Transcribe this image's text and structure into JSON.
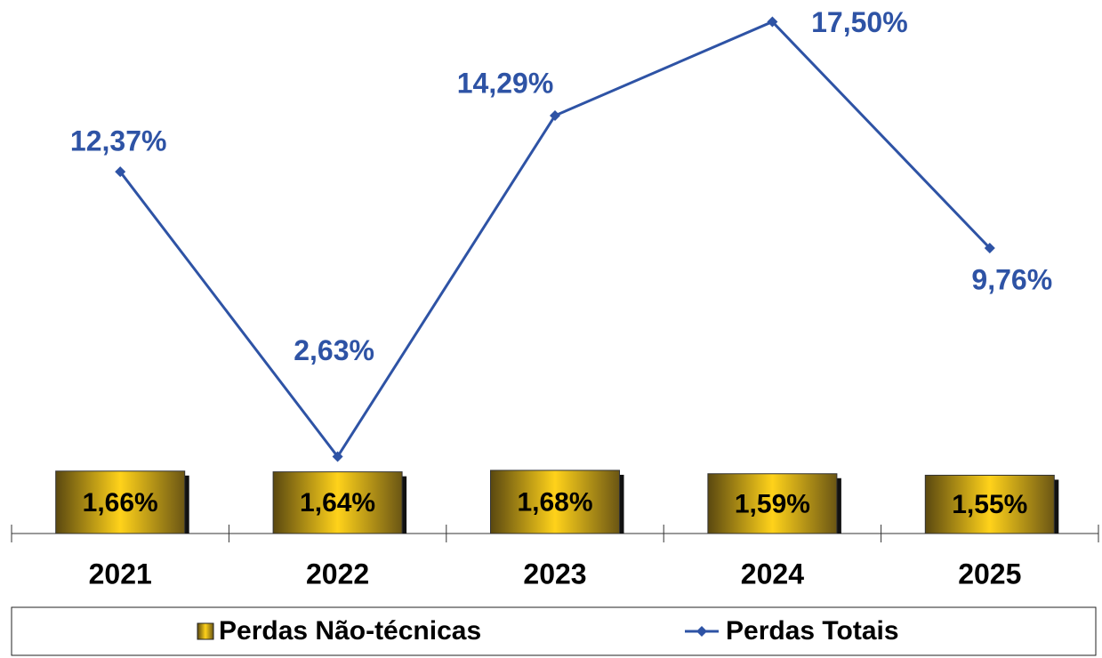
{
  "chart_data": {
    "type": "bar+line",
    "categories": [
      "2021",
      "2022",
      "2023",
      "2024",
      "2025"
    ],
    "series": [
      {
        "name": "Perdas Não-técnicas",
        "type": "bar",
        "axis": "y2",
        "color": "#f5c518",
        "values": [
          1.66,
          1.64,
          1.68,
          1.59,
          1.55
        ],
        "value_labels": [
          "1,66%",
          "1,64%",
          "1,68%",
          "1,59%",
          "1,55%"
        ]
      },
      {
        "name": "Perdas Totais",
        "type": "line",
        "color": "#2e53a5",
        "values": [
          12.37,
          2.63,
          14.29,
          17.5,
          9.76
        ],
        "value_labels": [
          "12,37%",
          "2,63%",
          "14,29%",
          "17,50%",
          "9,76%"
        ]
      }
    ],
    "ylim": [
      0,
      18
    ],
    "y2lim": [
      0,
      14
    ],
    "legend": "bottom"
  }
}
